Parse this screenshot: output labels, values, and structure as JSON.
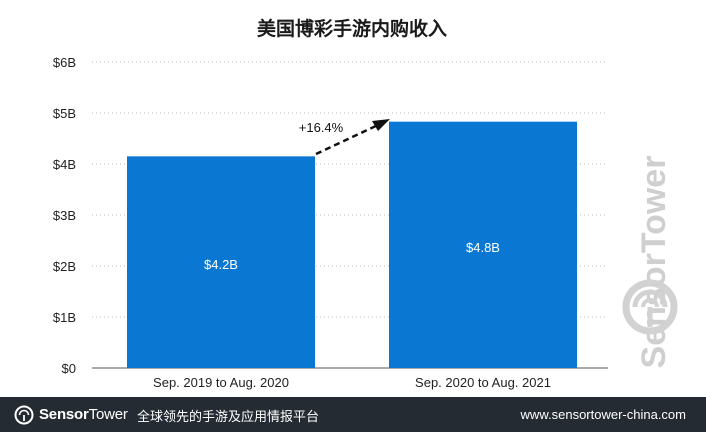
{
  "chart_data": {
    "type": "bar",
    "title": "美国博彩手游内购收入",
    "categories": [
      "Sep. 2019 to Aug. 2020",
      "Sep. 2020 to Aug. 2021"
    ],
    "values": [
      4.15,
      4.83
    ],
    "data_labels": [
      "$4.2B",
      "$4.8B"
    ],
    "y_ticks": [
      0,
      1,
      2,
      3,
      4,
      5,
      6
    ],
    "y_tick_labels": [
      "$0",
      "$1B",
      "$2B",
      "$3B",
      "$4B",
      "$5B",
      "$6B"
    ],
    "ylim": [
      0,
      6
    ],
    "grid": true,
    "bar_color": "#0a78d2",
    "annotation": "+16.4%"
  },
  "watermark": {
    "text": "SensorTower"
  },
  "footer": {
    "brand_bold": "Sensor",
    "brand_light": "Tower",
    "tagline": "全球领先的手游及应用情报平台",
    "url": "www.sensortower-china.com"
  }
}
